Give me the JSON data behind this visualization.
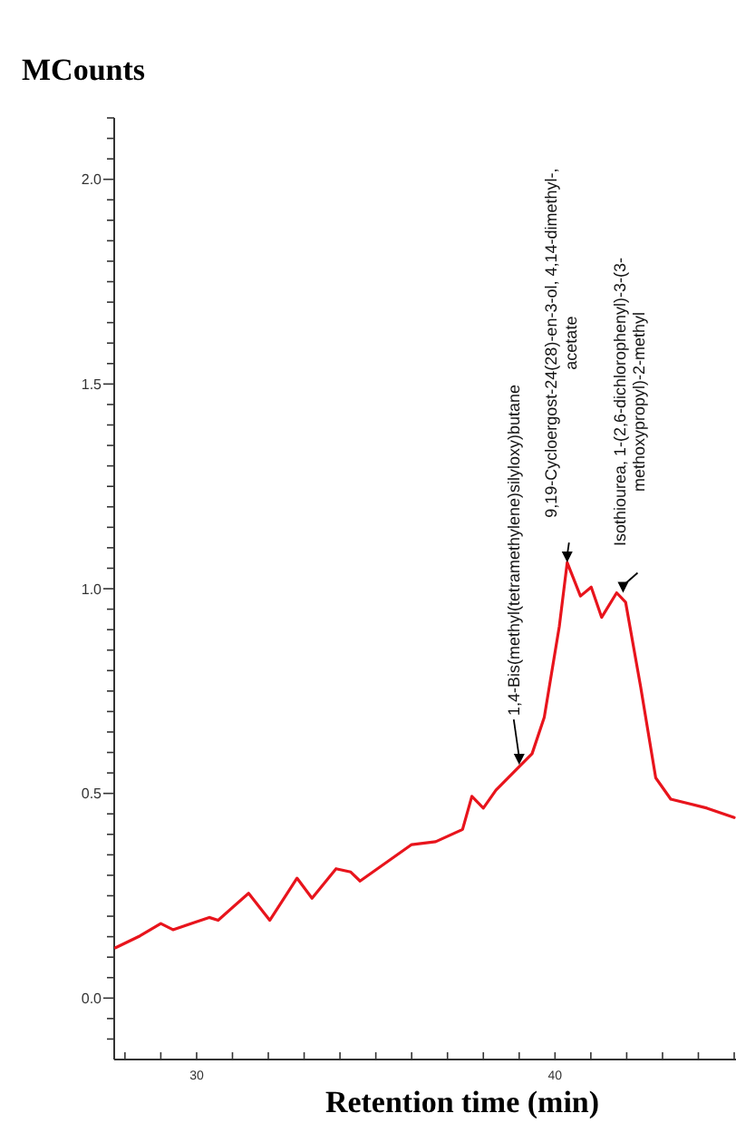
{
  "chart_data": {
    "type": "line",
    "xlabel": "Retention time (min)",
    "ylabel": "MCounts",
    "x": [
      27.74,
      28.42,
      29.0,
      29.34,
      30.35,
      30.6,
      31.45,
      32.04,
      32.8,
      33.22,
      33.89,
      34.3,
      34.56,
      36.0,
      36.67,
      37.42,
      37.68,
      38.0,
      38.35,
      39.02,
      39.36,
      39.7,
      40.12,
      40.34,
      40.71,
      41.01,
      41.3,
      41.72,
      41.97,
      42.39,
      42.81,
      43.23,
      44.24,
      45.0
    ],
    "series": [
      {
        "color": "#e8141c",
        "values": [
          0.123,
          0.152,
          0.182,
          0.167,
          0.197,
          0.19,
          0.256,
          0.19,
          0.293,
          0.244,
          0.316,
          0.308,
          0.286,
          0.375,
          0.382,
          0.412,
          0.493,
          0.464,
          0.508,
          0.567,
          0.597,
          0.686,
          0.908,
          1.064,
          0.982,
          1.004,
          0.93,
          0.99,
          0.967,
          0.76,
          0.538,
          0.486,
          0.464,
          0.441
        ]
      }
    ],
    "xlim": [
      27.7,
      45.05
    ],
    "xticks": [
      {
        "value": 28,
        "label": null
      },
      {
        "value": 29,
        "label": null
      },
      30,
      {
        "value": 31,
        "label": null
      },
      {
        "value": 32,
        "label": null
      },
      {
        "value": 33,
        "label": null
      },
      {
        "value": 34,
        "label": null
      },
      {
        "value": 35,
        "label": null
      },
      {
        "value": 36,
        "label": null
      },
      {
        "value": 37,
        "label": null
      },
      {
        "value": 38,
        "label": null
      },
      {
        "value": 39,
        "label": null
      },
      40,
      {
        "value": 41,
        "label": null
      },
      {
        "value": 42,
        "label": null
      },
      {
        "value": 43,
        "label": null
      },
      {
        "value": 44,
        "label": null
      },
      {
        "value": 45,
        "label": null
      }
    ],
    "ylim": [
      -0.15,
      2.15
    ],
    "yticks": [
      {
        "value": -0.1,
        "label": null
      },
      {
        "value": -0.05,
        "label": null
      },
      {
        "value": 0,
        "label": "0.0"
      },
      {
        "value": 0.05,
        "label": null
      },
      {
        "value": 0.1,
        "label": null
      },
      {
        "value": 0.15,
        "label": null
      },
      {
        "value": 0.2,
        "label": null
      },
      {
        "value": 0.25,
        "label": null
      },
      {
        "value": 0.3,
        "label": null
      },
      {
        "value": 0.35,
        "label": null
      },
      {
        "value": 0.4,
        "label": null
      },
      {
        "value": 0.45,
        "label": null
      },
      {
        "value": 0.5,
        "label": "0.5"
      },
      {
        "value": 0.55,
        "label": null
      },
      {
        "value": 0.6,
        "label": null
      },
      {
        "value": 0.65,
        "label": null
      },
      {
        "value": 0.7,
        "label": null
      },
      {
        "value": 0.75,
        "label": null
      },
      {
        "value": 0.8,
        "label": null
      },
      {
        "value": 0.85,
        "label": null
      },
      {
        "value": 0.9,
        "label": null
      },
      {
        "value": 0.95,
        "label": null
      },
      {
        "value": 1,
        "label": "1.0"
      },
      {
        "value": 1.05,
        "label": null
      },
      {
        "value": 1.1,
        "label": null
      },
      {
        "value": 1.15,
        "label": null
      },
      {
        "value": 1.2,
        "label": null
      },
      {
        "value": 1.25,
        "label": null
      },
      {
        "value": 1.3,
        "label": null
      },
      {
        "value": 1.35,
        "label": null
      },
      {
        "value": 1.4,
        "label": null
      },
      {
        "value": 1.45,
        "label": null
      },
      {
        "value": 1.5,
        "label": "1.5"
      },
      {
        "value": 1.55,
        "label": null
      },
      {
        "value": 1.6,
        "label": null
      },
      {
        "value": 1.65,
        "label": null
      },
      {
        "value": 1.7,
        "label": null
      },
      {
        "value": 1.75,
        "label": null
      },
      {
        "value": 1.8,
        "label": null
      },
      {
        "value": 1.85,
        "label": null
      },
      {
        "value": 1.9,
        "label": null
      },
      {
        "value": 1.95,
        "label": null
      },
      {
        "value": 2,
        "label": "2.0"
      },
      {
        "value": 2.05,
        "label": null
      },
      {
        "value": 2.1,
        "label": null
      },
      {
        "value": 2.15,
        "label": null
      }
    ],
    "grid": false,
    "marker": "none",
    "line_style": "solid",
    "annotations": [
      {
        "text": "1,4-Bis(methyl(tetramethylene)silyloxy)butane",
        "x": 39.0,
        "y": 0.57
      },
      {
        "text": "9,19-Cycloergost-24(28)-en-3-ol, 4,14-dimethyl-,\nacetate",
        "x": 40.34,
        "y": 1.064
      },
      {
        "text": "Isothiourea, 1-(2,6-dichlorophenyl)-3-(3-\nmethoxypropyl)-2-methyl",
        "x": 41.9,
        "y": 0.99
      }
    ]
  }
}
